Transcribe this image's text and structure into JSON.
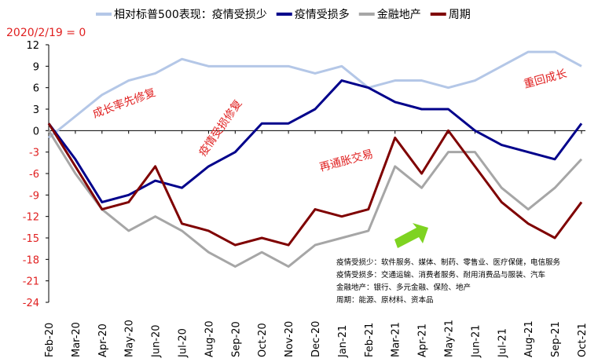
{
  "chart_data": {
    "type": "line",
    "baseline_note": "2020/2/19 = 0",
    "categories": [
      "Feb-20",
      "Mar-20",
      "Apr-20",
      "May-20",
      "Jun-20",
      "Jul-20",
      "Aug-20",
      "Sep-20",
      "Oct-20",
      "Nov-20",
      "Dec-20",
      "Jan-21",
      "Feb-21",
      "Mar-21",
      "Apr-21",
      "May-21",
      "Jun-21",
      "Jul-21",
      "Aug-21",
      "Sep-21",
      "Oct-21"
    ],
    "ylim": [
      -24,
      12
    ],
    "yticks": [
      12,
      9,
      6,
      3,
      0,
      -3,
      -6,
      -9,
      -12,
      -15,
      -18,
      -21,
      -24
    ],
    "grid": false,
    "legend": "top",
    "series": [
      {
        "name": "相对标普500表现：疫情受损少",
        "color": "#b4c7e7",
        "values": [
          -1,
          2,
          5,
          7,
          8,
          10,
          9,
          9,
          9,
          9,
          8,
          9,
          6,
          7,
          7,
          6,
          7,
          9,
          11,
          11,
          9
        ]
      },
      {
        "name": "疫情受损多",
        "color": "#00008b",
        "values": [
          1,
          -4,
          -10,
          -9,
          -7,
          -8,
          -5,
          -3,
          1,
          1,
          3,
          7,
          6,
          4,
          3,
          3,
          0,
          -2,
          -3,
          -4,
          1
        ]
      },
      {
        "name": "金融地产",
        "color": "#a6a6a6",
        "values": [
          0,
          -6,
          -11,
          -14,
          -12,
          -14,
          -17,
          -19,
          -17,
          -19,
          -16,
          -15,
          -14,
          -5,
          -8,
          -3,
          -3,
          -8,
          -11,
          -8,
          -4
        ]
      },
      {
        "name": "周期",
        "color": "#7f0000",
        "values": [
          1,
          -5,
          -11,
          -10,
          -5,
          -13,
          -14,
          -16,
          -15,
          -16,
          -11,
          -12,
          -11,
          -1,
          -6,
          0,
          -5,
          -10,
          -13,
          -15,
          -10
        ]
      }
    ],
    "annotations": [
      "成长率先修复",
      "疫情受损修复",
      "再通胀交易",
      "重回成长"
    ],
    "notes": [
      "疫情受损少：软件服务、媒体、制药、零售业、医疗保健，电信服务",
      "疫情受损多：交通运输、消费者服务、耐用消费品与服装、汽车",
      "金融地产：银行、多元金融、保险、地产",
      "周期：能源、原材料、资本品"
    ],
    "colors": {
      "annotation": "#e02020",
      "arrow": "#7ed321"
    }
  }
}
